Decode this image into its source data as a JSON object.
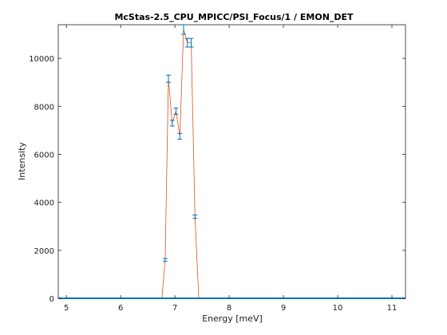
{
  "chart_data": {
    "type": "line",
    "title": "McStas-2.5_CPU_MPICC/PSI_Focus/1 / EMON_DET",
    "xlabel": "Energy [meV]",
    "ylabel": "Intensity",
    "xlim": [
      4.85,
      11.25
    ],
    "ylim": [
      0,
      11400
    ],
    "x_ticks": [
      5,
      6,
      7,
      8,
      9,
      10,
      11
    ],
    "y_ticks": [
      0,
      2000,
      4000,
      6000,
      8000,
      10000
    ],
    "grid": false,
    "legend": "none",
    "colors": {
      "line": "#d9531e",
      "error_bar": "#0072bd",
      "axis": "#222222"
    },
    "series": [
      {
        "x": [
          4.85,
          6.76,
          6.82,
          6.88,
          6.95,
          7.02,
          7.09,
          7.16,
          7.23,
          7.3,
          7.37,
          7.44,
          11.25
        ],
        "y": [
          0,
          0,
          1600,
          9150,
          7300,
          7800,
          6750,
          11200,
          10650,
          10650,
          3400,
          0,
          0
        ],
        "err": [
          0,
          0,
          60,
          150,
          120,
          130,
          120,
          200,
          180,
          180,
          70,
          0,
          0
        ]
      }
    ]
  }
}
